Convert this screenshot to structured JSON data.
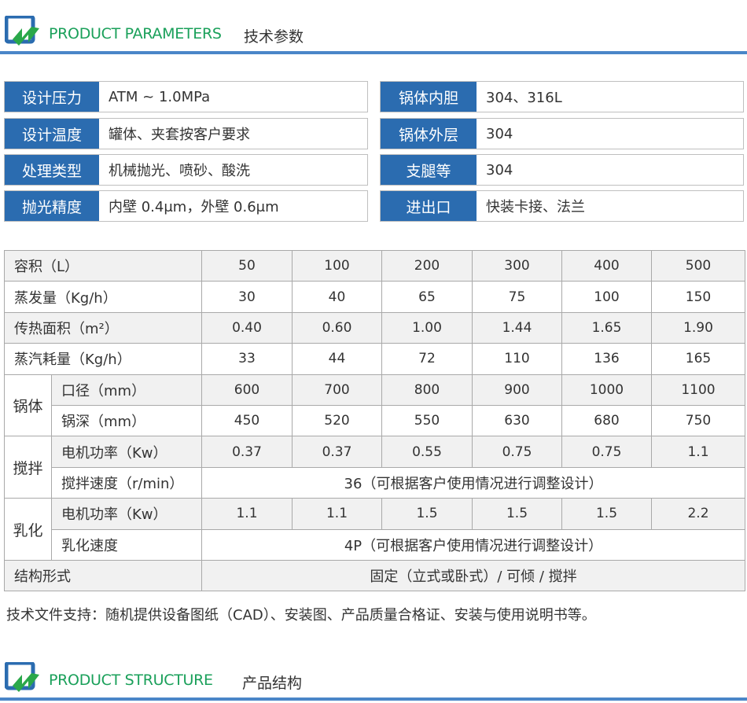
{
  "section1": {
    "title_en": "PRODUCT PARAMETERS",
    "title_cn": "技术参数"
  },
  "section2": {
    "title_en": "PRODUCT STRUCTURE",
    "title_cn": "产品结构"
  },
  "colors": {
    "accent_blue": "#2b6cb0",
    "title_green": "#1aa05a",
    "rule_blue": "#4a86c8"
  },
  "params_left": [
    {
      "label": "设计压力",
      "value": "ATM ~ 1.0MPa"
    },
    {
      "label": "设计温度",
      "value": "罐体、夹套按客户要求"
    },
    {
      "label": "处理类型",
      "value": "机械抛光、喷砂、酸洗"
    },
    {
      "label": "抛光精度",
      "value": "内壁 0.4μm，外壁 0.6μm"
    }
  ],
  "params_right": [
    {
      "label": "锅体内胆",
      "value": "304、316L"
    },
    {
      "label": "锅体外层",
      "value": "304"
    },
    {
      "label": "支腿等",
      "value": "304"
    },
    {
      "label": "进出口",
      "value": "快装卡接、法兰"
    }
  ],
  "table": {
    "capacity": {
      "label": "容积（L）",
      "values": [
        "50",
        "100",
        "200",
        "300",
        "400",
        "500"
      ]
    },
    "evaporation": {
      "label": "蒸发量（Kg/h）",
      "values": [
        "30",
        "40",
        "65",
        "75",
        "100",
        "150"
      ]
    },
    "heat_area": {
      "label": "传热面积（m²）",
      "values": [
        "0.40",
        "0.60",
        "1.00",
        "1.44",
        "1.65",
        "1.90"
      ]
    },
    "steam": {
      "label": "蒸汽耗量（Kg/h）",
      "values": [
        "33",
        "44",
        "72",
        "110",
        "136",
        "165"
      ]
    },
    "body": {
      "group": "锅体",
      "diameter": {
        "label": "口径（mm）",
        "values": [
          "600",
          "700",
          "800",
          "900",
          "1000",
          "1100"
        ]
      },
      "depth": {
        "label": "锅深（mm）",
        "values": [
          "450",
          "520",
          "550",
          "630",
          "680",
          "750"
        ]
      }
    },
    "stir": {
      "group": "搅拌",
      "power": {
        "label": "电机功率（Kw）",
        "values": [
          "0.37",
          "0.37",
          "0.55",
          "0.75",
          "0.75",
          "1.1"
        ]
      },
      "speed": {
        "label": "搅拌速度（r/min）",
        "value": "36（可根据客户使用情况进行调整设计）"
      }
    },
    "emulsify": {
      "group": "乳化",
      "power": {
        "label": "电机功率（Kw）",
        "values": [
          "1.1",
          "1.1",
          "1.5",
          "1.5",
          "1.5",
          "2.2"
        ]
      },
      "speed": {
        "label": "乳化速度",
        "value": "4P（可根据客户使用情况进行调整设计）"
      }
    },
    "structure": {
      "label": "结构形式",
      "value": "固定（立式或卧式）/ 可倾 / 搅拌"
    }
  },
  "note": "技术文件支持：随机提供设备图纸（CAD）、安装图、产品质量合格证、安装与使用说明书等。"
}
